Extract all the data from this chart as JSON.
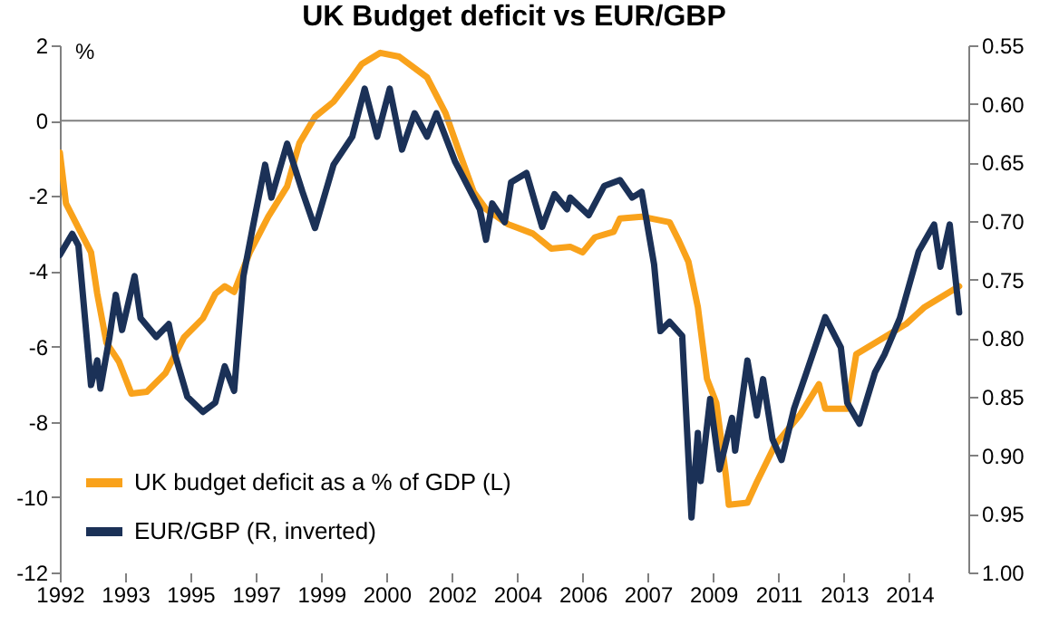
{
  "chart_data": {
    "type": "line",
    "title": "UK Budget deficit vs EUR/GBP",
    "ylabel": "%",
    "xlim": [
      "1992-01",
      "2016-05"
    ],
    "xticks": [
      {
        "value": "1992-01",
        "label": "1992"
      },
      {
        "value": "1993-10",
        "label": "1993"
      },
      {
        "value": "1995-07",
        "label": "1995"
      },
      {
        "value": "1997-04",
        "label": "1997"
      },
      {
        "value": "1999-01",
        "label": "1999"
      },
      {
        "value": "2000-10",
        "label": "2000"
      },
      {
        "value": "2002-07",
        "label": "2002"
      },
      {
        "value": "2004-04",
        "label": "2004"
      },
      {
        "value": "2006-01",
        "label": "2006"
      },
      {
        "value": "2007-10",
        "label": "2007"
      },
      {
        "value": "2009-07",
        "label": "2009"
      },
      {
        "value": "2011-04",
        "label": "2011"
      },
      {
        "value": "2013-01",
        "label": "2013"
      },
      {
        "value": "2014-10",
        "label": "2014"
      }
    ],
    "ylim": [
      -12,
      2
    ],
    "yticks": [
      -12,
      -10,
      -8,
      -6,
      -4,
      -2,
      0,
      2
    ],
    "y2lim": [
      1.0,
      0.55
    ],
    "y2ticks": [
      {
        "value": 0.55,
        "label": "0.55"
      },
      {
        "value": 0.6,
        "label": "0.60"
      },
      {
        "value": 0.65,
        "label": "0.65"
      },
      {
        "value": 0.7,
        "label": "0.70"
      },
      {
        "value": 0.75,
        "label": "0.75"
      },
      {
        "value": 0.8,
        "label": "0.80"
      },
      {
        "value": 0.85,
        "label": "0.85"
      },
      {
        "value": 0.9,
        "label": "0.90"
      },
      {
        "value": 0.95,
        "label": "0.95"
      },
      {
        "value": 1.0,
        "label": "1.00"
      }
    ],
    "ref_lines": [
      {
        "axis": "y",
        "value": 0,
        "color": "#808080"
      }
    ],
    "legend": "bottom left",
    "grid": false,
    "line_style": "solid",
    "series": [
      {
        "name": "UK budget deficit as a % of GDP (L)",
        "color": "#f9a21b",
        "x": [
          "1992-01",
          "1992-03",
          "1992-07",
          "1992-11",
          "1993-01",
          "1993-04",
          "1993-08",
          "1993-12",
          "1994-05",
          "1994-11",
          "1995-05",
          "1995-11",
          "1996-03",
          "1996-06",
          "1996-09",
          "1997-02",
          "1997-08",
          "1998-02",
          "1998-06",
          "1998-11",
          "1999-05",
          "1999-11",
          "2000-02",
          "2000-08",
          "2001-02",
          "2001-11",
          "2002-05",
          "2002-09",
          "2003-02",
          "2003-06",
          "2004-01",
          "2004-09",
          "2005-03",
          "2005-09",
          "2006-01",
          "2006-05",
          "2006-11",
          "2007-01",
          "2007-08",
          "2008-05",
          "2008-08",
          "2008-11",
          "2009-02",
          "2009-05",
          "2009-08",
          "2009-11",
          "2009-12",
          "2010-06",
          "2010-09",
          "2011-03",
          "2011-11",
          "2012-05",
          "2012-07",
          "2013-02",
          "2013-05",
          "2014-02",
          "2014-09",
          "2015-03",
          "2016-02"
        ],
        "values": [
          -0.85,
          -2.2,
          -2.85,
          -3.5,
          -4.6,
          -5.9,
          -6.4,
          -7.25,
          -7.2,
          -6.7,
          -5.75,
          -5.25,
          -4.6,
          -4.4,
          -4.55,
          -3.5,
          -2.55,
          -1.75,
          -0.6,
          0.1,
          0.5,
          1.15,
          1.5,
          1.8,
          1.7,
          1.15,
          0.2,
          -0.75,
          -1.9,
          -2.35,
          -2.75,
          -3.0,
          -3.4,
          -3.35,
          -3.5,
          -3.1,
          -2.95,
          -2.6,
          -2.55,
          -2.7,
          -3.2,
          -3.75,
          -4.95,
          -6.85,
          -7.5,
          -9.4,
          -10.2,
          -10.15,
          -9.6,
          -8.6,
          -7.8,
          -7.0,
          -7.65,
          -7.65,
          -6.2,
          -5.75,
          -5.4,
          -4.95,
          -4.4
        ]
      },
      {
        "name": "EUR/GBP (R, inverted)",
        "color": "#1b3157",
        "axis": "y2",
        "x": [
          "1992-01",
          "1992-05",
          "1992-07",
          "1992-11",
          "1993-01",
          "1993-02",
          "1993-05",
          "1993-07",
          "1993-09",
          "1994-01",
          "1994-03",
          "1994-08",
          "1994-12",
          "1995-02",
          "1995-06",
          "1995-11",
          "1996-03",
          "1996-06",
          "1996-09",
          "1996-12",
          "1997-03",
          "1997-07",
          "1997-09",
          "1998-02",
          "1998-07",
          "1998-11",
          "1999-05",
          "1999-11",
          "2000-03",
          "2000-07",
          "2000-11",
          "2001-03",
          "2001-07",
          "2001-11",
          "2002-02",
          "2002-08",
          "2003-04",
          "2003-06",
          "2003-08",
          "2003-12",
          "2004-02",
          "2004-07",
          "2004-12",
          "2005-04",
          "2005-08",
          "2005-09",
          "2006-03",
          "2006-08",
          "2007-01",
          "2007-05",
          "2007-08",
          "2007-12",
          "2008-02",
          "2008-05",
          "2008-09",
          "2008-12",
          "2009-02",
          "2009-03",
          "2009-06",
          "2009-09",
          "2010-01",
          "2010-02",
          "2010-06",
          "2010-09",
          "2010-11",
          "2011-02",
          "2011-05",
          "2011-09",
          "2012-01",
          "2012-07",
          "2012-12",
          "2013-02",
          "2013-06",
          "2013-11",
          "2014-02",
          "2014-07",
          "2015-01",
          "2015-06",
          "2015-08",
          "2015-11",
          "2016-02"
        ],
        "values": [
          0.729,
          0.711,
          0.721,
          0.84,
          0.819,
          0.843,
          0.799,
          0.763,
          0.793,
          0.747,
          0.783,
          0.799,
          0.788,
          0.814,
          0.85,
          0.863,
          0.855,
          0.824,
          0.845,
          0.747,
          0.706,
          0.652,
          0.68,
          0.634,
          0.675,
          0.706,
          0.652,
          0.628,
          0.587,
          0.628,
          0.587,
          0.639,
          0.608,
          0.628,
          0.608,
          0.649,
          0.69,
          0.716,
          0.685,
          0.701,
          0.667,
          0.659,
          0.705,
          0.677,
          0.69,
          0.68,
          0.695,
          0.67,
          0.665,
          0.68,
          0.675,
          0.737,
          0.794,
          0.786,
          0.798,
          0.953,
          0.881,
          0.922,
          0.852,
          0.912,
          0.868,
          0.896,
          0.819,
          0.866,
          0.835,
          0.886,
          0.904,
          0.86,
          0.829,
          0.782,
          0.808,
          0.855,
          0.873,
          0.829,
          0.814,
          0.783,
          0.726,
          0.703,
          0.739,
          0.703,
          0.778
        ]
      }
    ]
  }
}
